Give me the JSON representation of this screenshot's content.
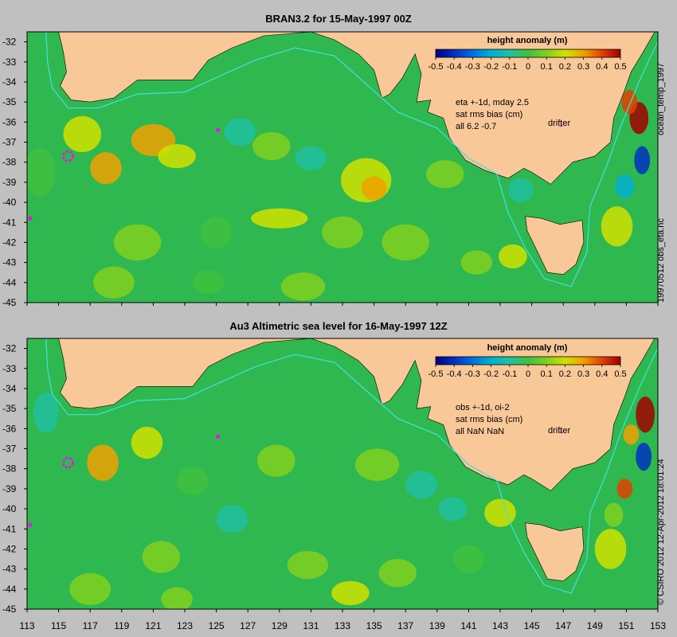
{
  "panels": [
    {
      "title": "BRAN3.2 for 15-May-1997 00Z",
      "colorbar_title": "height anomaly (m)",
      "annotation_lines": [
        "eta +-1d, mday 2.5",
        "sat rms bias (cm)",
        "all 6.2 -0.7"
      ],
      "drifter_label": "drifter",
      "side_label": "19970512 obs_eta.nc"
    },
    {
      "title": "Au3 Altimetric sea level  for 16-May-1997 12Z",
      "colorbar_title": "height anomaly (m)",
      "annotation_lines": [
        "obs +-1d, oi-2",
        "sat rms bias (cm)",
        "all NaN NaN"
      ],
      "drifter_label": "drifter",
      "side_label": "© CSIRO 2012  12-Apr-2012 18:01:24"
    }
  ],
  "top_side_label": "ocean_temp_1997",
  "colorbar": {
    "ticks": [
      "-0.5",
      "-0.4",
      "-0.3",
      "-0.2",
      "-0.1",
      "0",
      "0.1",
      "0.2",
      "0.3",
      "0.4",
      "0.5"
    ],
    "colors": [
      "#000080",
      "#0030c0",
      "#0070e0",
      "#00b0d0",
      "#20c0a0",
      "#40c040",
      "#80d020",
      "#d0e000",
      "#f0a000",
      "#e04000",
      "#a00000"
    ]
  },
  "map_data": {
    "lon_range": [
      113,
      153
    ],
    "lat_range": [
      -45,
      -31.5
    ],
    "lon_ticks": [
      "113",
      "115",
      "117",
      "119",
      "121",
      "123",
      "125",
      "127",
      "129",
      "131",
      "133",
      "135",
      "137",
      "139",
      "141",
      "143",
      "145",
      "147",
      "149",
      "151",
      "153"
    ],
    "lat_ticks": [
      "-32",
      "-33",
      "-34",
      "-35",
      "-36",
      "-37",
      "-38",
      "-39",
      "-40",
      "-41",
      "-42",
      "-43",
      "-44",
      "-45"
    ],
    "land_color": "#f8c898",
    "ocean_color": "#30b850",
    "contour_line_color": "#40e0e0",
    "drifter_color": "#ff00ff"
  }
}
